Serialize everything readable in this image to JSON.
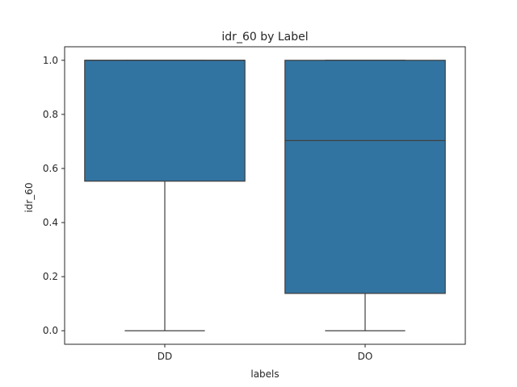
{
  "chart_data": {
    "type": "boxplot",
    "title": "idr_60 by Label",
    "xlabel": "labels",
    "ylabel": "idr_60",
    "categories": [
      "DD",
      "DO"
    ],
    "boxes": [
      {
        "category": "DD",
        "whisker_low": 0.0,
        "q1": 0.553,
        "median": 1.0,
        "q3": 1.0,
        "whisker_high": 1.0
      },
      {
        "category": "DO",
        "whisker_low": 0.0,
        "q1": 0.138,
        "median": 0.703,
        "q3": 1.0,
        "whisker_high": 1.0
      }
    ],
    "ylim": [
      -0.05,
      1.05
    ],
    "yticks": [
      0.0,
      0.2,
      0.4,
      0.6,
      0.8,
      1.0
    ],
    "ytick_labels": [
      "0.0",
      "0.2",
      "0.4",
      "0.6",
      "0.8",
      "1.0"
    ],
    "box_color": "#3274a1",
    "line_color": "#3f3f3f",
    "grid": false,
    "legend": "none"
  }
}
